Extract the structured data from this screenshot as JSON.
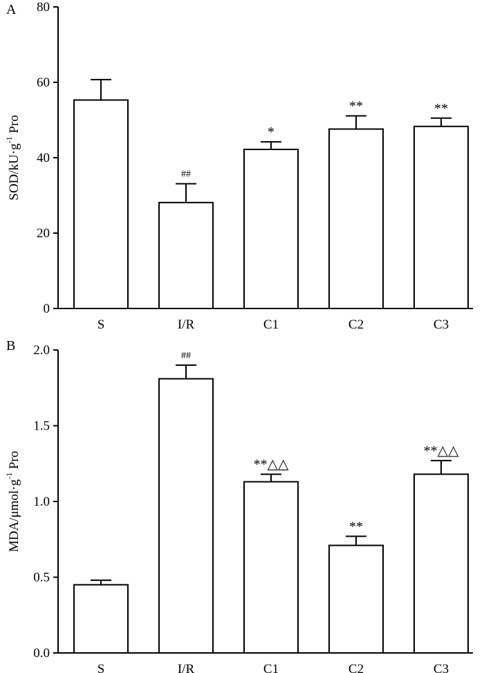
{
  "chart_data": [
    {
      "type": "bar",
      "panel_label": "A",
      "ylabel_main": "SOD/kU·g",
      "ylabel_sup": "-1",
      "ylabel_tail": " Pro",
      "ylim": [
        0,
        80
      ],
      "yticks": [
        "0",
        "20",
        "40",
        "60",
        "80"
      ],
      "categories": [
        "S",
        "I/R",
        "C1",
        "C2",
        "C3"
      ],
      "values": [
        55.3,
        28.1,
        42.2,
        47.6,
        48.3
      ],
      "errors": [
        5.4,
        5.0,
        2.0,
        3.5,
        2.2
      ],
      "annotations": [
        "",
        "##",
        "*",
        "**",
        "**"
      ]
    },
    {
      "type": "bar",
      "panel_label": "B",
      "ylabel_main": "MDA/μmol·g",
      "ylabel_sup": "-1",
      "ylabel_tail": " Pro",
      "ylim": [
        0,
        2.0
      ],
      "yticks": [
        "0.0",
        "0.5",
        "1.0",
        "1.5",
        "2.0"
      ],
      "categories": [
        "S",
        "I/R",
        "C1",
        "C2",
        "C3"
      ],
      "values": [
        0.45,
        1.81,
        1.13,
        0.71,
        1.18
      ],
      "errors": [
        0.03,
        0.09,
        0.05,
        0.06,
        0.09
      ],
      "annotations": [
        "",
        "##",
        "**△△",
        "**",
        "**△△"
      ]
    }
  ]
}
